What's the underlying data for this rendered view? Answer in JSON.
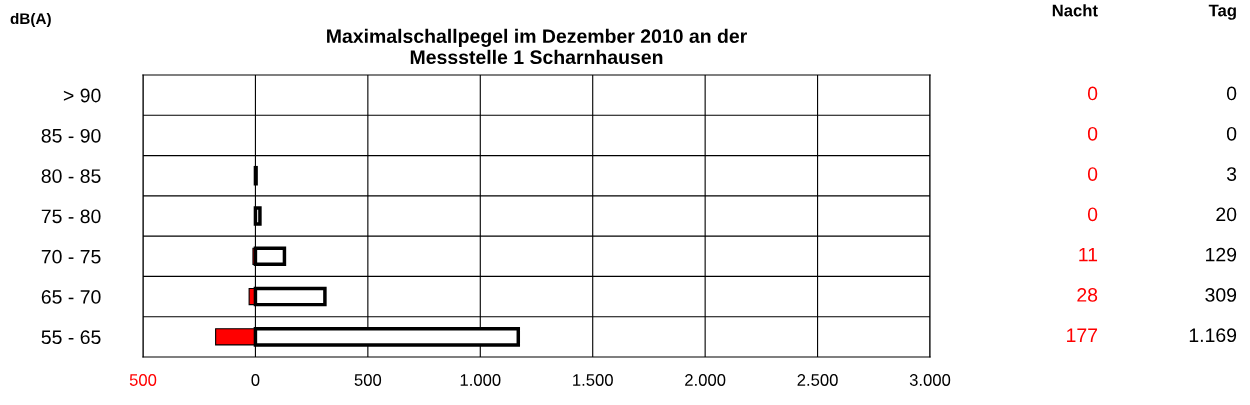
{
  "chart_data": {
    "type": "bar",
    "orientation": "horizontal",
    "title": "Maximalschallpegel im Dezember 2010 an der\nMessstelle 1 Scharnhausen",
    "ylabel": "dB(A)",
    "categories": [
      "> 90",
      "85 - 90",
      "80 - 85",
      "75 - 80",
      "70 - 75",
      "65 - 70",
      "55 - 65"
    ],
    "series": [
      {
        "name": "Nacht",
        "color": "#ff0000",
        "values": [
          0,
          0,
          0,
          0,
          11,
          28,
          177
        ],
        "base": [
          null,
          null,
          null,
          null,
          -11,
          -28,
          -177
        ],
        "value_labels": [
          "0",
          "0",
          "0",
          "0",
          "11",
          "28",
          "177"
        ]
      },
      {
        "name": "Tag",
        "color": "#ffffff",
        "values": [
          0,
          0,
          3,
          20,
          129,
          309,
          1169
        ],
        "value_labels": [
          "0",
          "0",
          "3",
          "20",
          "129",
          "309",
          "1.169"
        ]
      }
    ],
    "xlim": [
      -500,
      3000
    ],
    "xticks": [
      {
        "value": -500,
        "label": "500"
      },
      0,
      {
        "value": 500,
        "label": "500"
      },
      {
        "value": 1000,
        "label": "1.000"
      },
      {
        "value": 1500,
        "label": "1.500"
      },
      {
        "value": 2000,
        "label": "2.000"
      },
      {
        "value": 2500,
        "label": "2.500"
      },
      {
        "value": 3000,
        "label": "3.000"
      }
    ],
    "grid": true,
    "legend": false
  }
}
